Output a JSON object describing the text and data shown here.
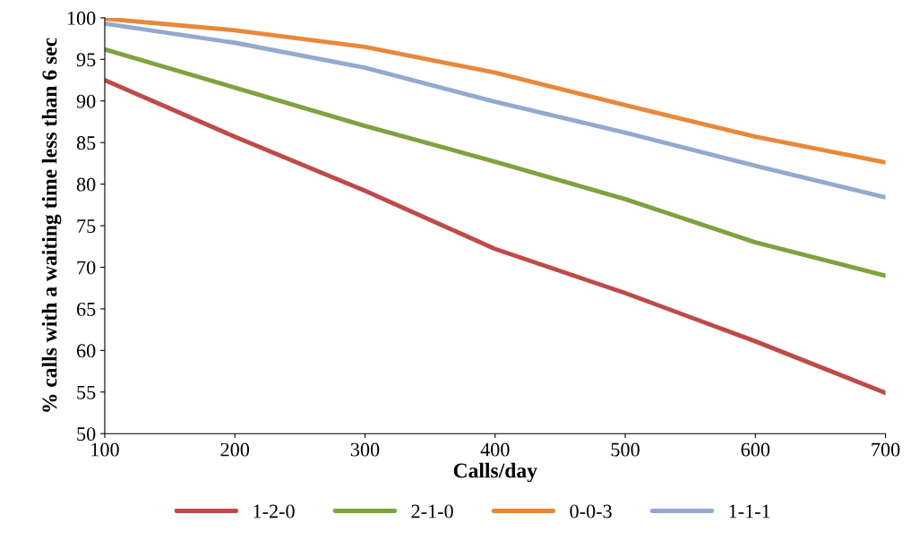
{
  "chart_data": {
    "type": "line",
    "xlabel": "Calls/day",
    "ylabel": "% calls with a waiting time less than 6 sec",
    "x": [
      100,
      200,
      300,
      400,
      500,
      600,
      700
    ],
    "series": [
      {
        "name": "1-2-0",
        "color": "#be4b48",
        "values": [
          92.5,
          85.7,
          79.2,
          72.2,
          66.9,
          61.1,
          54.9
        ]
      },
      {
        "name": "2-1-0",
        "color": "#7fa23f",
        "values": [
          96.2,
          91.6,
          87.0,
          82.7,
          78.2,
          73.0,
          69.0
        ]
      },
      {
        "name": "0-0-3",
        "color": "#e8883a",
        "values": [
          99.9,
          98.5,
          96.5,
          93.4,
          89.5,
          85.7,
          82.6
        ]
      },
      {
        "name": "1-1-1",
        "color": "#93a9cf",
        "values": [
          99.3,
          97.0,
          94.0,
          89.9,
          86.2,
          82.2,
          78.4
        ]
      }
    ],
    "xlim": [
      100,
      700
    ],
    "xticks": [
      100,
      200,
      300,
      400,
      500,
      600,
      700
    ],
    "ylim": [
      50,
      100
    ],
    "yticks": [
      50,
      55,
      60,
      65,
      70,
      75,
      80,
      85,
      90,
      95,
      100
    ],
    "grid": false,
    "legend": "bottom",
    "marker": "none",
    "line_style": "solid"
  }
}
